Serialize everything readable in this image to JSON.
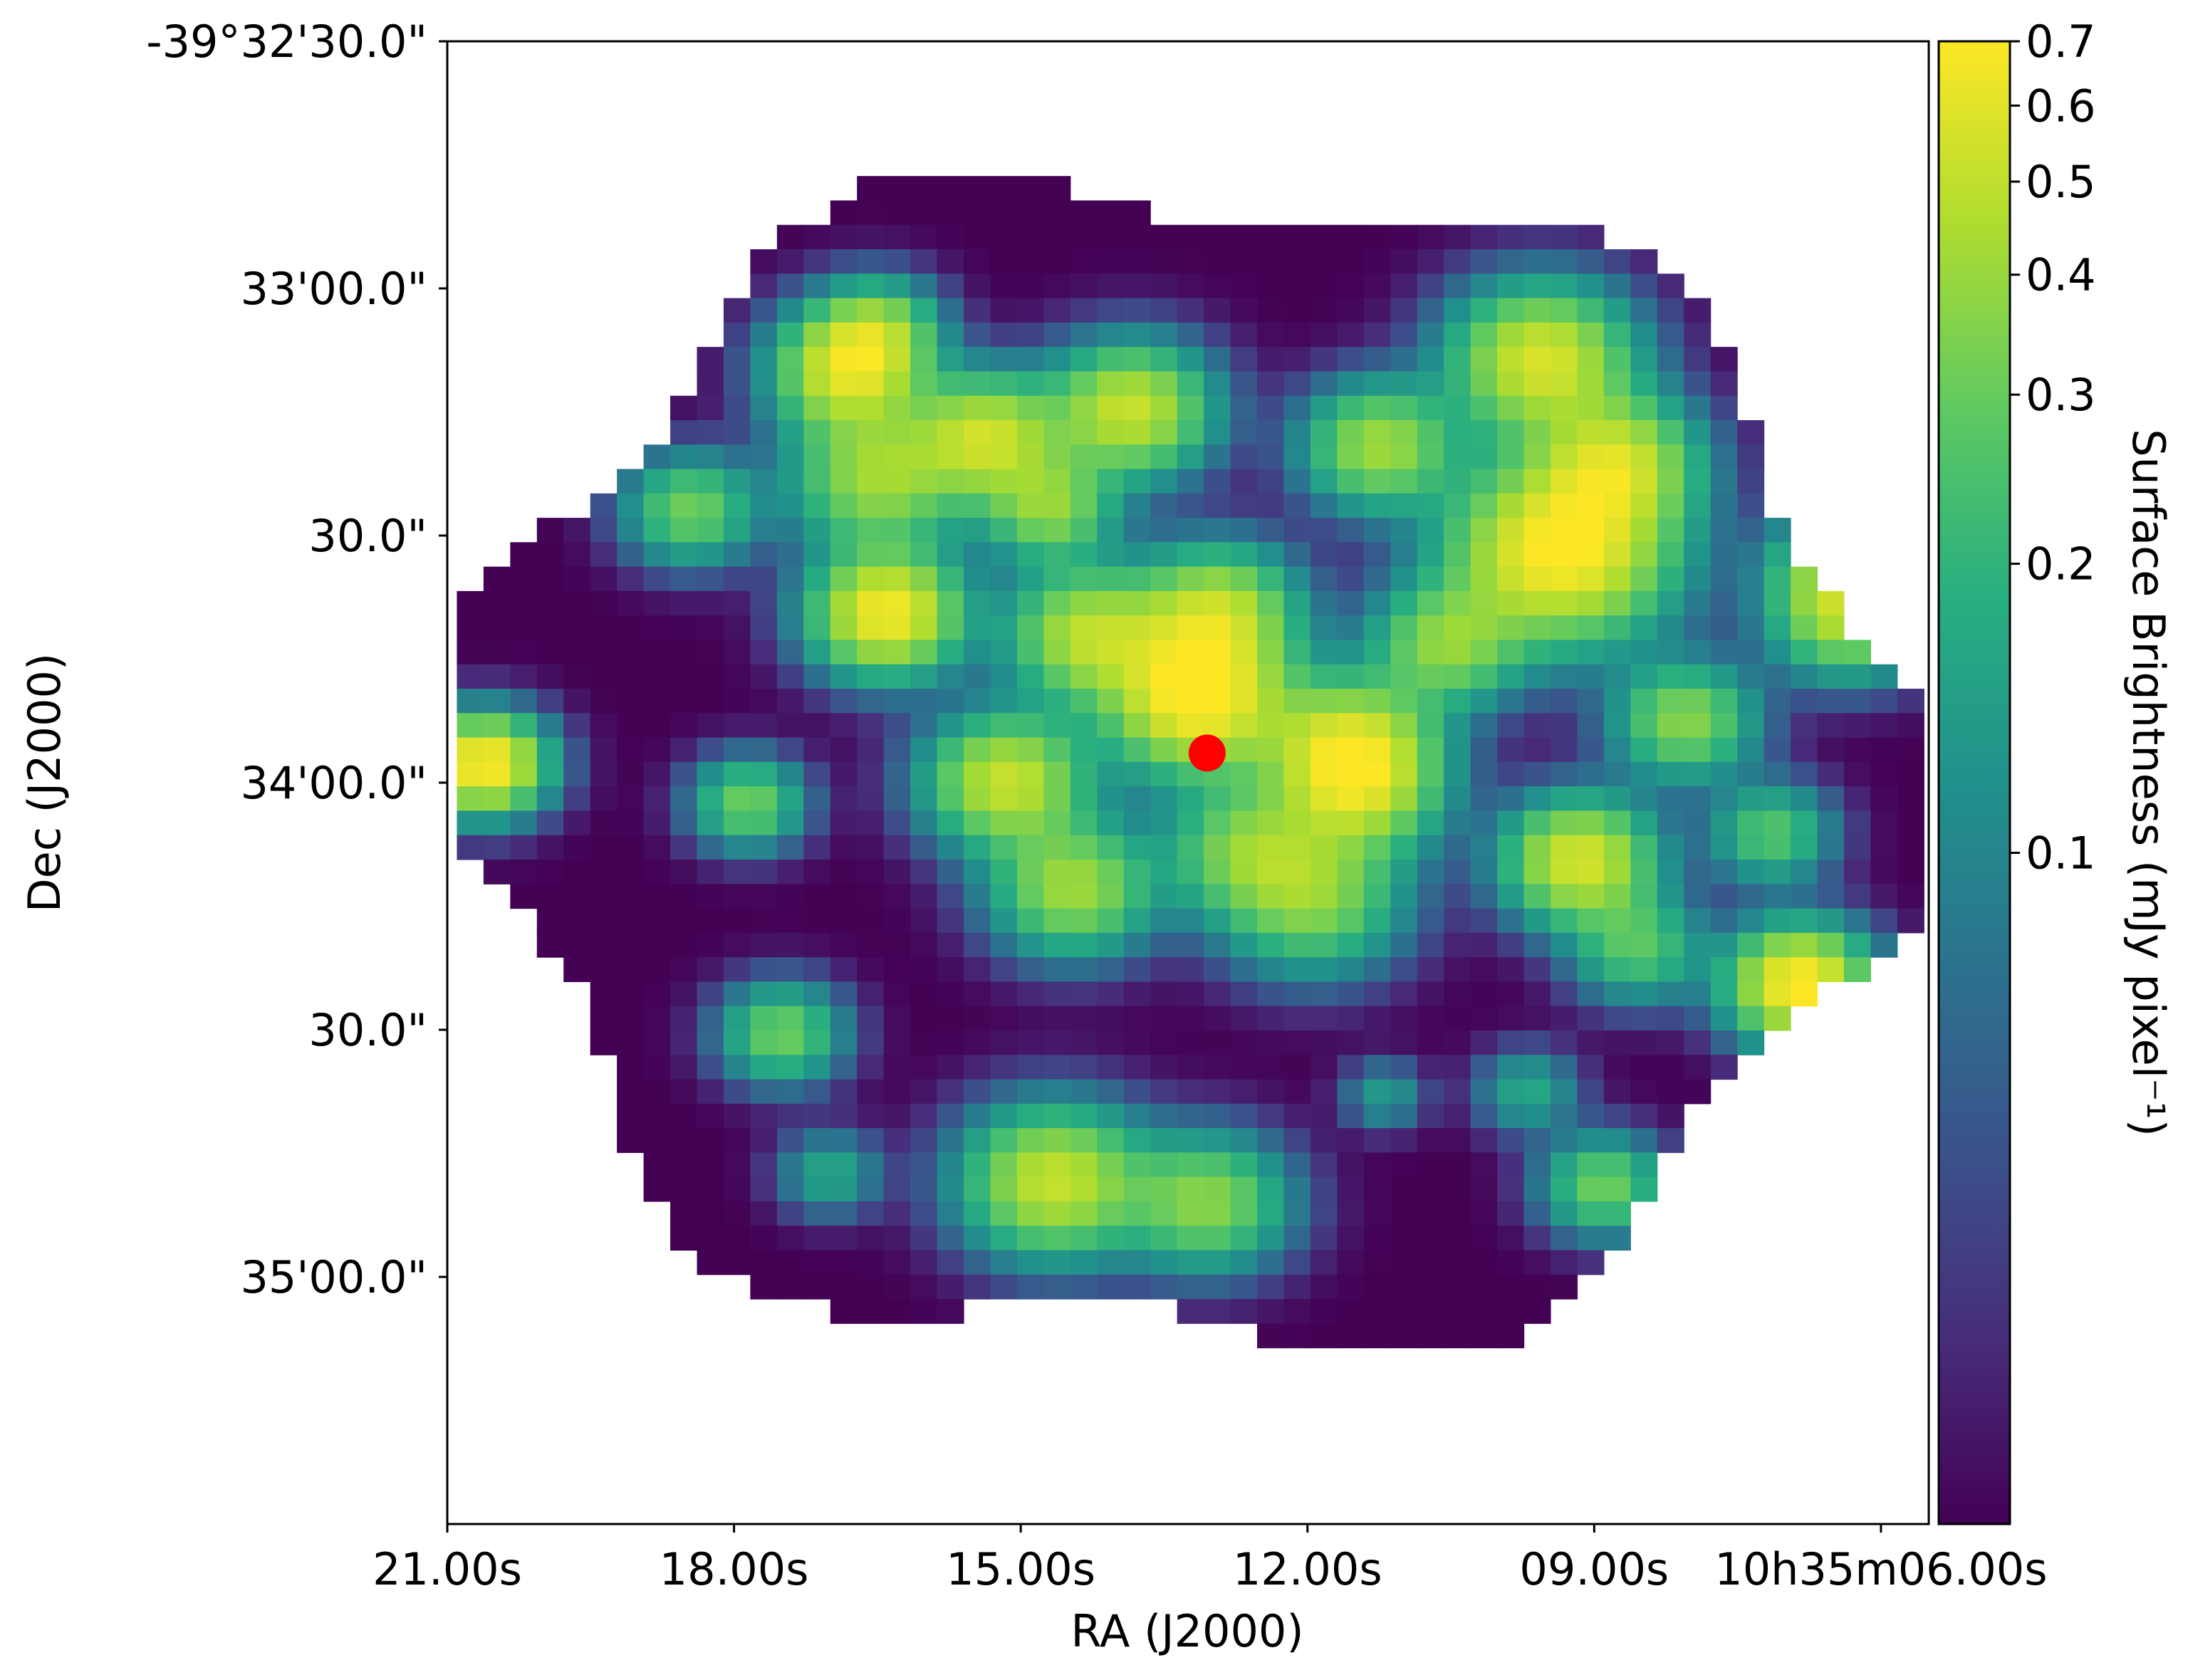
{
  "chart_data": {
    "type": "heatmap",
    "title": "",
    "xlabel": "RA (J2000)",
    "ylabel": "Dec (J2000)",
    "x_ticks": [
      "21.00s",
      "18.00s",
      "15.00s",
      "12.00s",
      "09.00s",
      "10h35m06.00s"
    ],
    "x_tick_values_sec": [
      21,
      18,
      15,
      12,
      9,
      6
    ],
    "xlim_sec": [
      21.0,
      5.5
    ],
    "y_ticks": [
      "-39°32'30.0\"",
      "33'00.0\"",
      "30.0\"",
      "34'00.0\"",
      "30.0\"",
      "35'00.0\""
    ],
    "y_tick_values_arcsec": [
      -30,
      0,
      30,
      60,
      90,
      120
    ],
    "ylim_arcsec": [
      -30,
      150
    ],
    "colorbar": {
      "label": "Surface Brightness (mJy pixel⁻¹)",
      "scale": "log",
      "colormap": "viridis",
      "vmin": 0.02,
      "vmax": 0.7,
      "tick_labels": [
        "0.7",
        "0.6",
        "0.5",
        "0.4",
        "0.3",
        "0.2",
        "0.1"
      ],
      "tick_values": [
        0.7,
        0.6,
        0.5,
        0.4,
        0.3,
        0.2,
        0.1
      ]
    },
    "grid_size": [
      55,
      55
    ],
    "blobs": [
      {
        "ra": 8.75,
        "dec": 21.2,
        "v": 0.45,
        "w": 1.6
      },
      {
        "ra": 9.55,
        "dec": 8.8,
        "v": 0.55,
        "w": 1.8
      },
      {
        "ra": 16.8,
        "dec": 10.0,
        "v": 0.55,
        "w": 1.5
      },
      {
        "ra": 15.35,
        "dec": 18.1,
        "v": 0.5,
        "w": 1.5
      },
      {
        "ra": 13.85,
        "dec": 14.8,
        "v": 0.5,
        "w": 1.6
      },
      {
        "ra": 11.25,
        "dec": 19.2,
        "v": 0.4,
        "w": 1.5
      },
      {
        "ra": 9.35,
        "dec": 31.8,
        "v": 0.7,
        "w": 2.2
      },
      {
        "ra": 10.55,
        "dec": 43.2,
        "v": 0.35,
        "w": 1.5
      },
      {
        "ra": 11.55,
        "dec": 56.0,
        "v": 0.55,
        "w": 1.7
      },
      {
        "ra": 12.95,
        "dec": 39.3,
        "v": 0.45,
        "w": 1.6
      },
      {
        "ra": 14.3,
        "dec": 42.0,
        "v": 0.45,
        "w": 1.6
      },
      {
        "ra": 13.15,
        "dec": 49.8,
        "v": 0.7,
        "w": 1.8
      },
      {
        "ra": 16.4,
        "dec": 39.4,
        "v": 0.65,
        "w": 1.5
      },
      {
        "ra": 15.15,
        "dec": 59.8,
        "v": 0.5,
        "w": 1.6
      },
      {
        "ra": 17.85,
        "dec": 62.5,
        "v": 0.3,
        "w": 1.1
      },
      {
        "ra": 14.45,
        "dec": 72.8,
        "v": 0.4,
        "w": 1.6
      },
      {
        "ra": 11.95,
        "dec": 73.9,
        "v": 0.35,
        "w": 1.8
      },
      {
        "ra": 12.65,
        "dec": 68.0,
        "v": 0.3,
        "w": 1.6
      },
      {
        "ra": 11.45,
        "dec": 61.5,
        "v": 0.3,
        "w": 1.6
      },
      {
        "ra": 9.15,
        "dec": 69.5,
        "v": 0.55,
        "w": 1.5
      },
      {
        "ra": 8.55,
        "dec": 80.0,
        "v": 0.25,
        "w": 1.3
      },
      {
        "ra": 6.85,
        "dec": 84.5,
        "v": 0.7,
        "w": 1.4
      },
      {
        "ra": 7.15,
        "dec": 66.2,
        "v": 0.25,
        "w": 1.2
      },
      {
        "ra": 6.35,
        "dec": 39.5,
        "v": 0.45,
        "w": 1.5
      },
      {
        "ra": 6.5,
        "dec": 33.0,
        "v": 0.25,
        "w": 1.3
      },
      {
        "ra": 8.05,
        "dec": 52.5,
        "v": 0.35,
        "w": 1.4
      },
      {
        "ra": 20.6,
        "dec": 57.8,
        "v": 0.7,
        "w": 1.2
      },
      {
        "ra": 18.45,
        "dec": 26.9,
        "v": 0.3,
        "w": 1.3
      },
      {
        "ra": 16.5,
        "dec": 23.0,
        "v": 0.4,
        "w": 1.7
      },
      {
        "ra": 14.7,
        "dec": 26.7,
        "v": 0.35,
        "w": 1.3
      },
      {
        "ra": 16.5,
        "dec": 5.0,
        "v": 0.3,
        "w": 1.2
      },
      {
        "ra": 17.5,
        "dec": 90.5,
        "v": 0.3,
        "w": 1.2
      },
      {
        "ra": 14.65,
        "dec": 108.5,
        "v": 0.5,
        "w": 1.8
      },
      {
        "ra": 13.05,
        "dec": 111.0,
        "v": 0.35,
        "w": 1.6
      },
      {
        "ra": 8.9,
        "dec": 109.0,
        "v": 0.3,
        "w": 1.2
      },
      {
        "ra": 9.7,
        "dec": 97.5,
        "v": 0.15,
        "w": 1.0
      },
      {
        "ra": 11.2,
        "dec": 98.0,
        "v": 0.12,
        "w": 0.8
      },
      {
        "ra": 17.0,
        "dec": 107.5,
        "v": 0.15,
        "w": 1.0
      }
    ],
    "mask": {
      "center_ra": 13.3,
      "center_dec": 58.0,
      "radius_ra": 7.55,
      "radius_dec": 71.0,
      "edge_amp": 0.08,
      "edge_freq": 6
    },
    "marker": {
      "ra": 13.05,
      "dec": 56.4,
      "color": "#ff0000",
      "label": ""
    }
  }
}
